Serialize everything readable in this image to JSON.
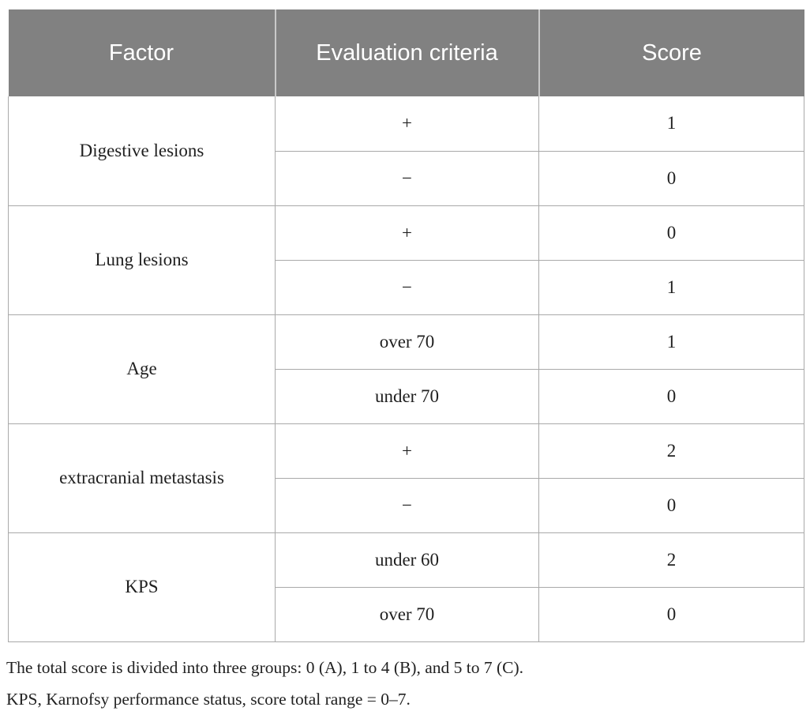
{
  "table": {
    "columns": [
      {
        "label": "Factor"
      },
      {
        "label": "Evaluation criteria"
      },
      {
        "label": "Score"
      }
    ],
    "rows": [
      {
        "factor": "Digestive lesions",
        "criteria": [
          {
            "criterion": "+",
            "score": "1"
          },
          {
            "criterion": "−",
            "score": "0"
          }
        ]
      },
      {
        "factor": "Lung lesions",
        "criteria": [
          {
            "criterion": "+",
            "score": "0"
          },
          {
            "criterion": "−",
            "score": "1"
          }
        ]
      },
      {
        "factor": "Age",
        "criteria": [
          {
            "criterion": "over 70",
            "score": "1"
          },
          {
            "criterion": "under 70",
            "score": "0"
          }
        ]
      },
      {
        "factor": "extracranial metastasis",
        "criteria": [
          {
            "criterion": "+",
            "score": "2"
          },
          {
            "criterion": "−",
            "score": "0"
          }
        ]
      },
      {
        "factor": "KPS",
        "criteria": [
          {
            "criterion": "under 60",
            "score": "2"
          },
          {
            "criterion": "over 70",
            "score": "0"
          }
        ]
      }
    ]
  },
  "notes": [
    "The total score is divided into three groups: 0 (A), 1 to 4 (B), and 5 to 7 (C).",
    "KPS, Karnofsy performance status, score total range = 0–7."
  ],
  "colors": {
    "header_background": "#818181",
    "header_text": "#ffffff",
    "body_text": "#1f1f1f",
    "border": "#a9a9a9"
  }
}
